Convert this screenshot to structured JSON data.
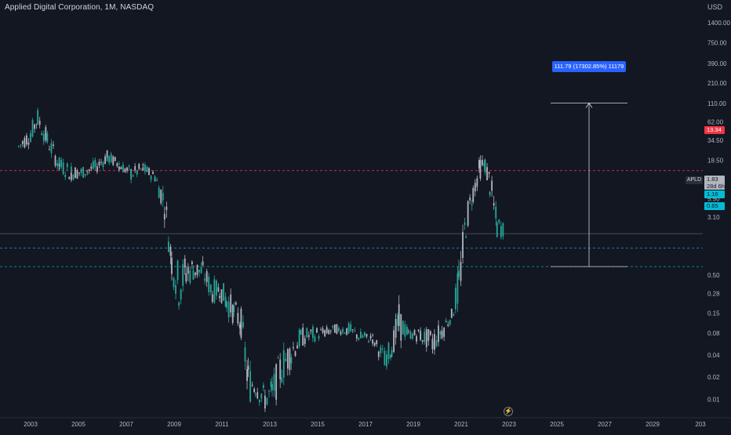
{
  "header": {
    "title": "Applied Digital Corporation, 1M, NASDAQ",
    "currency": "USD"
  },
  "symbol": "APLD",
  "price_tags": {
    "current": "1.83",
    "countdown": "28d 6h",
    "red_level": "13.34",
    "cyan_level_1": "1.16",
    "cyan_level_2": "0.65"
  },
  "measure_label": "111.79 (17302.85%) 11179",
  "icons": {
    "bottom_center": "lightning-icon"
  },
  "colors": {
    "background": "#131722",
    "up": "#26a69a",
    "down": "#b2b5be",
    "red_line": "#f23645",
    "cyan_line": "#00bcd4",
    "measure": "#2962ff"
  },
  "chart_data": {
    "type": "candlestick",
    "y_scale": "log",
    "x_tick_labels": [
      "2003",
      "2005",
      "2007",
      "2009",
      "2011",
      "2013",
      "2015",
      "2017",
      "2019",
      "2021",
      "2023",
      "2025",
      "2027",
      "2029",
      "203"
    ],
    "y_tick_labels": [
      "1400.00",
      "750.00",
      "390.00",
      "210.00",
      "110.00",
      "62.00",
      "34.50",
      "18.50",
      "10.50",
      "5.50",
      "3.10",
      "0.50",
      "0.28",
      "0.15",
      "0.08",
      "0.04",
      "0.02",
      "0.01"
    ],
    "ylim": [
      0.006,
      2600
    ],
    "horizontal_lines": [
      {
        "value": 13.34,
        "color": "#f23645",
        "style": "dashed"
      },
      {
        "value": 1.16,
        "color": "#00bcd4",
        "style": "dashed"
      },
      {
        "value": 0.65,
        "color": "#00bcd4",
        "style": "dashed"
      },
      {
        "value": 1.83,
        "color": "#787b86",
        "style": "solid"
      }
    ],
    "measure": {
      "from": 0.65,
      "to": 111.79,
      "label": "111.79 (17302.85%) 11179"
    },
    "series": [
      {
        "values": [
          [
            2002.5,
            40,
            20
          ],
          [
            2003.0,
            70,
            25
          ],
          [
            2003.3,
            120,
            40
          ],
          [
            2003.7,
            60,
            20
          ],
          [
            2004.2,
            25,
            10
          ],
          [
            2004.7,
            20,
            8
          ],
          [
            2005.2,
            18,
            9
          ],
          [
            2005.7,
            22,
            10
          ],
          [
            2006.2,
            30,
            14
          ],
          [
            2006.7,
            22,
            12
          ],
          [
            2007.2,
            18,
            8
          ],
          [
            2007.7,
            20,
            10
          ],
          [
            2008.2,
            15,
            8
          ],
          [
            2008.6,
            12,
            2
          ],
          [
            2008.9,
            2,
            0.3
          ],
          [
            2009.2,
            1.3,
            0.1
          ],
          [
            2009.5,
            1.5,
            0.2
          ],
          [
            2009.8,
            1.2,
            0.3
          ],
          [
            2010.2,
            1.0,
            0.3
          ],
          [
            2010.6,
            0.6,
            0.15
          ],
          [
            2010.9,
            0.5,
            0.2
          ],
          [
            2011.2,
            0.5,
            0.1
          ],
          [
            2011.5,
            0.3,
            0.08
          ],
          [
            2011.8,
            0.25,
            0.05
          ],
          [
            2012.1,
            0.06,
            0.005
          ],
          [
            2012.4,
            0.03,
            0.008
          ],
          [
            2012.8,
            0.02,
            0.005
          ],
          [
            2013.1,
            0.03,
            0.005
          ],
          [
            2013.5,
            0.08,
            0.01
          ],
          [
            2013.9,
            0.1,
            0.02
          ],
          [
            2014.3,
            0.12,
            0.04
          ],
          [
            2014.8,
            0.12,
            0.05
          ],
          [
            2015.3,
            0.11,
            0.06
          ],
          [
            2015.8,
            0.12,
            0.07
          ],
          [
            2016.3,
            0.13,
            0.06
          ],
          [
            2016.8,
            0.1,
            0.05
          ],
          [
            2017.3,
            0.09,
            0.05
          ],
          [
            2017.8,
            0.06,
            0.02
          ],
          [
            2018.1,
            0.09,
            0.03
          ],
          [
            2018.4,
            0.3,
            0.04
          ],
          [
            2018.8,
            0.1,
            0.06
          ],
          [
            2019.3,
            0.11,
            0.05
          ],
          [
            2019.8,
            0.12,
            0.03
          ],
          [
            2020.2,
            0.15,
            0.05
          ],
          [
            2020.6,
            0.2,
            0.1
          ],
          [
            2020.9,
            1.2,
            0.1
          ],
          [
            2021.2,
            7,
            1
          ],
          [
            2021.5,
            12,
            4
          ],
          [
            2021.8,
            28,
            8
          ],
          [
            2022.0,
            25,
            10
          ],
          [
            2022.2,
            20,
            4
          ],
          [
            2022.5,
            5,
            1
          ],
          [
            2022.8,
            3,
            1.5
          ]
        ],
        "name": ""
      }
    ]
  }
}
